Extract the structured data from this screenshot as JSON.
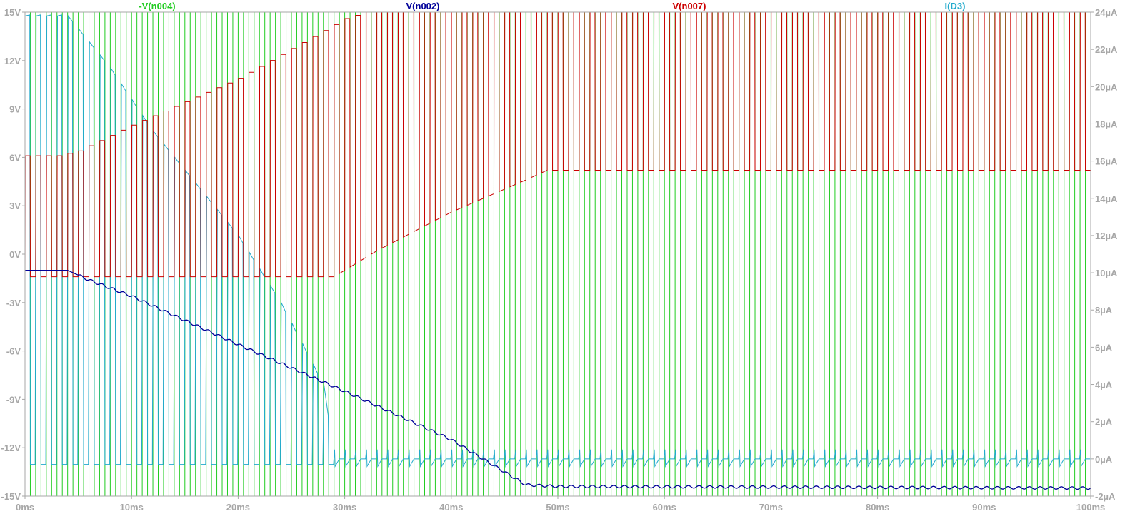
{
  "chart_data": {
    "type": "line",
    "x_axis": {
      "unit": "ms",
      "range": [
        0,
        100
      ],
      "ticks": [
        "0ms",
        "10ms",
        "20ms",
        "30ms",
        "40ms",
        "50ms",
        "60ms",
        "70ms",
        "80ms",
        "90ms",
        "100ms"
      ]
    },
    "y_left": {
      "unit": "V",
      "range": [
        -15,
        15
      ],
      "ticks": [
        "15V",
        "12V",
        "9V",
        "6V",
        "3V",
        "0V",
        "-3V",
        "-6V",
        "-9V",
        "-12V",
        "-15V"
      ]
    },
    "y_right": {
      "unit": "µA",
      "range": [
        -2,
        24
      ],
      "ticks": [
        "24µA",
        "22µA",
        "20µA",
        "18µA",
        "16µA",
        "14µA",
        "12µA",
        "10µA",
        "8µA",
        "6µA",
        "4µA",
        "2µA",
        "0µA",
        "-2µA"
      ]
    },
    "grid": false,
    "legend_position": "top",
    "series": [
      {
        "name": "-V(n004)",
        "color": "#22cc22",
        "axis": "left",
        "kind": "square_wave",
        "period_ms": 1.0,
        "high": 15,
        "low": -15
      },
      {
        "name": "V(n002)",
        "color": "#000099",
        "axis": "left",
        "kind": "smooth",
        "points": [
          [
            0,
            -1.0
          ],
          [
            4,
            -1.0
          ],
          [
            6,
            -1.6
          ],
          [
            10,
            -2.6
          ],
          [
            20,
            -5.6
          ],
          [
            30,
            -8.5
          ],
          [
            40,
            -11.5
          ],
          [
            47,
            -14.3
          ],
          [
            50,
            -14.4
          ],
          [
            100,
            -14.5
          ]
        ]
      },
      {
        "name": "V(n007)",
        "color": "#cc0000",
        "axis": "left",
        "kind": "pulse_train",
        "period_ms": 1.0,
        "high": 15,
        "top_envelope": [
          [
            0,
            6.1
          ],
          [
            3,
            6.1
          ],
          [
            5,
            6.4
          ],
          [
            10,
            8.0
          ],
          [
            20,
            10.9
          ],
          [
            30,
            14.6
          ],
          [
            32,
            15
          ],
          [
            100,
            15
          ]
        ],
        "bottom_envelope": [
          [
            0,
            -1.4
          ],
          [
            19,
            -1.4
          ],
          [
            29,
            -1.4
          ],
          [
            33,
            0.2
          ],
          [
            40,
            2.6
          ],
          [
            47,
            4.6
          ],
          [
            49,
            5.2
          ],
          [
            100,
            5.2
          ]
        ]
      },
      {
        "name": "I(D3)",
        "color": "#22aacc",
        "axis": "right",
        "kind": "spiky_decay",
        "period_ms": 1.0,
        "baseline": -0.3,
        "envelope": [
          [
            0,
            23.8
          ],
          [
            4,
            23.8
          ],
          [
            8,
            21.0
          ],
          [
            12,
            17.6
          ],
          [
            20,
            12.0
          ],
          [
            24,
            8.4
          ],
          [
            28,
            4.0
          ],
          [
            29,
            0.6
          ],
          [
            30,
            0.0
          ],
          [
            100,
            0.0
          ]
        ]
      }
    ]
  }
}
